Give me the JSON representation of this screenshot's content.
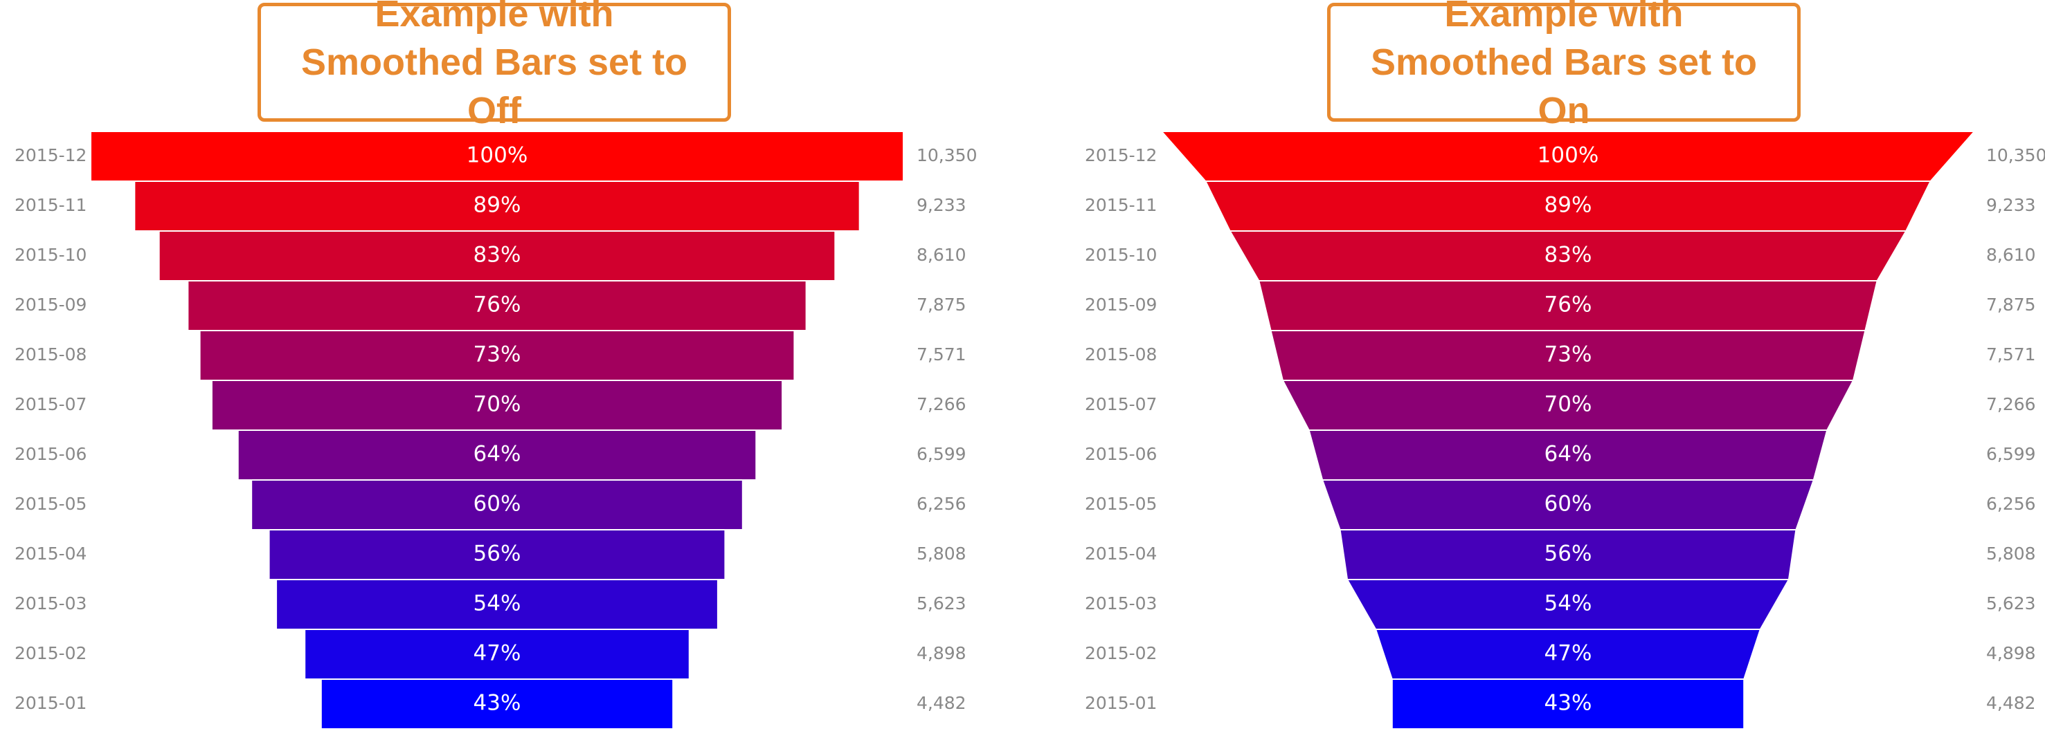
{
  "chart_data": [
    {
      "type": "funnel",
      "title": "Example with Smoothed Bars set to Off",
      "smoothed": false,
      "categories": [
        "2015-12",
        "2015-11",
        "2015-10",
        "2015-09",
        "2015-08",
        "2015-07",
        "2015-06",
        "2015-05",
        "2015-04",
        "2015-03",
        "2015-02",
        "2015-01"
      ],
      "values": [
        10350,
        9233,
        8610,
        7875,
        7571,
        7266,
        6599,
        6256,
        5808,
        5623,
        4898,
        4482
      ],
      "value_labels": [
        "10,350",
        "9,233",
        "8,610",
        "7,875",
        "7,571",
        "7,266",
        "6,599",
        "6,256",
        "5,808",
        "5,623",
        "4,898",
        "4,482"
      ],
      "percent_labels": [
        "100%",
        "89%",
        "83%",
        "76%",
        "73%",
        "70%",
        "64%",
        "60%",
        "56%",
        "54%",
        "47%",
        "43%"
      ],
      "color_start": "#ff0000",
      "color_end": "#0000ff"
    },
    {
      "type": "funnel",
      "title": "Example with Smoothed Bars set to On",
      "smoothed": true,
      "categories": [
        "2015-12",
        "2015-11",
        "2015-10",
        "2015-09",
        "2015-08",
        "2015-07",
        "2015-06",
        "2015-05",
        "2015-04",
        "2015-03",
        "2015-02",
        "2015-01"
      ],
      "values": [
        10350,
        9233,
        8610,
        7875,
        7571,
        7266,
        6599,
        6256,
        5808,
        5623,
        4898,
        4482
      ],
      "value_labels": [
        "10,350",
        "9,233",
        "8,610",
        "7,875",
        "7,571",
        "7,266",
        "6,599",
        "6,256",
        "5,808",
        "5,623",
        "4,898",
        "4,482"
      ],
      "percent_labels": [
        "100%",
        "89%",
        "83%",
        "76%",
        "73%",
        "70%",
        "64%",
        "60%",
        "56%",
        "54%",
        "47%",
        "43%"
      ],
      "color_start": "#ff0000",
      "color_end": "#0000ff"
    }
  ]
}
